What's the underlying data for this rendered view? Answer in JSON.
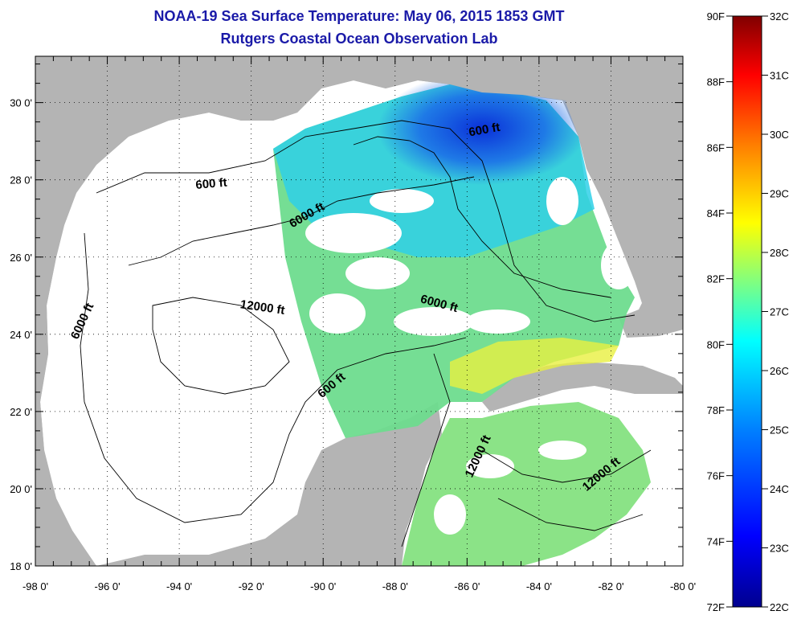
{
  "header": {
    "title": "NOAA-19 Sea Surface Temperature:  May 06, 2015 1853 GMT",
    "subtitle": "Rutgers Coastal Ocean Observation Lab"
  },
  "map": {
    "x_axis": {
      "ticks": [
        {
          "value": -98,
          "label": "-98 0'"
        },
        {
          "value": -96,
          "label": "-96 0'"
        },
        {
          "value": -94,
          "label": "-94 0'"
        },
        {
          "value": -92,
          "label": "-92 0'"
        },
        {
          "value": -90,
          "label": "-90 0'"
        },
        {
          "value": -88,
          "label": "-88 0'"
        },
        {
          "value": -86,
          "label": "-86 0'"
        },
        {
          "value": -84,
          "label": "-84 0'"
        },
        {
          "value": -82,
          "label": "-82 0'"
        },
        {
          "value": -80,
          "label": "-80 0'"
        }
      ],
      "range": [
        -98,
        -80
      ]
    },
    "y_axis": {
      "ticks": [
        {
          "value": 30,
          "label": "30 0'"
        },
        {
          "value": 28,
          "label": "28 0'"
        },
        {
          "value": 26,
          "label": "26 0'"
        },
        {
          "value": 24,
          "label": "24 0'"
        },
        {
          "value": 22,
          "label": "22 0'"
        },
        {
          "value": 20,
          "label": "20 0'"
        },
        {
          "value": 18,
          "label": "18 0'"
        }
      ],
      "range": [
        18,
        31.2
      ]
    },
    "contour_labels": [
      {
        "text": "600 ft",
        "lon": -85.5,
        "lat": 29.2
      },
      {
        "text": "600 ft",
        "lon": -93.1,
        "lat": 27.8
      },
      {
        "text": "6000 ft",
        "lon": -90.4,
        "lat": 27.0
      },
      {
        "text": "12000 ft",
        "lon": -91.7,
        "lat": 24.6
      },
      {
        "text": "6000 ft",
        "lon": -96.6,
        "lat": 24.3
      },
      {
        "text": "6000 ft",
        "lon": -86.8,
        "lat": 24.7
      },
      {
        "text": "600 ft",
        "lon": -89.7,
        "lat": 22.6
      },
      {
        "text": "12000 ft",
        "lon": -85.6,
        "lat": 20.8
      },
      {
        "text": "12000 ft",
        "lon": -82.2,
        "lat": 20.3
      }
    ],
    "grid": true
  },
  "colorbar": {
    "fahrenheit_labels": [
      "90F",
      "88F",
      "86F",
      "84F",
      "82F",
      "80F",
      "78F",
      "76F",
      "74F",
      "72F"
    ],
    "celsius_labels": [
      "32C",
      "31C",
      "30C",
      "29C",
      "28C",
      "27C",
      "26C",
      "25C",
      "24C",
      "23C",
      "22C"
    ],
    "colors": [
      "#00008f",
      "#0000ff",
      "#0080ff",
      "#00ffff",
      "#80ff80",
      "#ffff00",
      "#ff8000",
      "#ff0000",
      "#800000"
    ]
  }
}
